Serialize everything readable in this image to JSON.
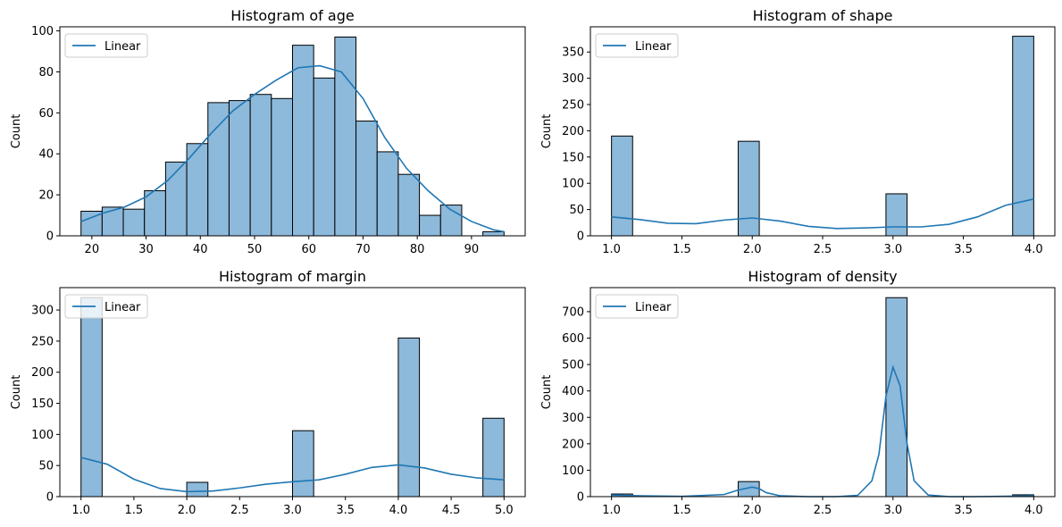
{
  "colors": {
    "bar_fill": "#8db9da",
    "bar_edge": "#000000",
    "line": "#1f77b4",
    "axes": "#000000"
  },
  "chart_data": [
    {
      "type": "bar",
      "variable": "age",
      "title": "Histogram of age",
      "ylabel": "Count",
      "legend": {
        "label": "Linear",
        "placement": "top-left"
      },
      "xlim": [
        14.1,
        99.9
      ],
      "ylim": [
        0,
        102
      ],
      "xticks": [
        20,
        30,
        40,
        50,
        60,
        70,
        80,
        90
      ],
      "xtick_labels": [
        "20",
        "30",
        "40",
        "50",
        "60",
        "70",
        "80",
        "90"
      ],
      "yticks": [
        0,
        20,
        40,
        60,
        80,
        100
      ],
      "ytick_labels": [
        "0",
        "20",
        "40",
        "60",
        "80",
        "100"
      ],
      "bin_edges": [
        18,
        21.9,
        25.8,
        29.7,
        33.6,
        37.5,
        41.4,
        45.3,
        49.2,
        53.1,
        57,
        60.9,
        64.8,
        68.7,
        72.6,
        76.5,
        80.4,
        84.3,
        88.2,
        92.1,
        96
      ],
      "counts": [
        12,
        14,
        13,
        22,
        36,
        45,
        65,
        66,
        69,
        67,
        93,
        77,
        97,
        56,
        41,
        30,
        10,
        15,
        0,
        2
      ],
      "kde": {
        "x": [
          18,
          22,
          26,
          30,
          34,
          38,
          42,
          46,
          50,
          54,
          58,
          62,
          66,
          70,
          74,
          78,
          82,
          86,
          90,
          94,
          96
        ],
        "y": [
          7,
          11,
          14,
          19,
          27,
          38,
          50,
          61,
          69,
          76,
          82,
          83,
          80,
          67,
          48,
          33,
          22,
          13,
          7,
          3,
          2
        ]
      }
    },
    {
      "type": "bar",
      "variable": "shape",
      "title": "Histogram of shape",
      "ylabel": "Count",
      "legend": {
        "label": "Linear",
        "placement": "top-left"
      },
      "xlim": [
        0.85,
        4.15
      ],
      "ylim": [
        0,
        398
      ],
      "xticks": [
        1.0,
        1.5,
        2.0,
        2.5,
        3.0,
        3.5,
        4.0
      ],
      "xtick_labels": [
        "1.0",
        "1.5",
        "2.0",
        "2.5",
        "3.0",
        "3.5",
        "4.0"
      ],
      "yticks": [
        0,
        50,
        100,
        150,
        200,
        250,
        300,
        350
      ],
      "ytick_labels": [
        "0",
        "50",
        "100",
        "150",
        "200",
        "250",
        "300",
        "350"
      ],
      "bin_edges": [
        1.0,
        1.15,
        1.3,
        1.45,
        1.6,
        1.75,
        1.9,
        2.05,
        2.2,
        2.35,
        2.5,
        2.65,
        2.8,
        2.95,
        3.1,
        3.25,
        3.4,
        3.55,
        3.7,
        3.85,
        4.0
      ],
      "counts": [
        190,
        0,
        0,
        0,
        0,
        0,
        180,
        0,
        0,
        0,
        0,
        0,
        0,
        80,
        0,
        0,
        0,
        0,
        0,
        380
      ],
      "kde": {
        "x": [
          1.0,
          1.2,
          1.4,
          1.6,
          1.8,
          2.0,
          2.2,
          2.4,
          2.6,
          2.8,
          3.0,
          3.2,
          3.4,
          3.6,
          3.8,
          4.0
        ],
        "y": [
          36,
          31,
          24,
          23,
          30,
          34,
          28,
          18,
          14,
          15,
          17,
          17,
          22,
          36,
          58,
          70
        ]
      }
    },
    {
      "type": "bar",
      "variable": "margin",
      "title": "Histogram of margin",
      "ylabel": "Count",
      "legend": {
        "label": "Linear",
        "placement": "top-left"
      },
      "xlim": [
        0.8,
        5.2
      ],
      "ylim": [
        0,
        336
      ],
      "xticks": [
        1.0,
        1.5,
        2.0,
        2.5,
        3.0,
        3.5,
        4.0,
        4.5,
        5.0
      ],
      "xtick_labels": [
        "1.0",
        "1.5",
        "2.0",
        "2.5",
        "3.0",
        "3.5",
        "4.0",
        "4.5",
        "5.0"
      ],
      "yticks": [
        0,
        50,
        100,
        150,
        200,
        250,
        300
      ],
      "ytick_labels": [
        "0",
        "50",
        "100",
        "150",
        "200",
        "250",
        "300"
      ],
      "bin_edges": [
        1.0,
        1.2,
        1.4,
        1.6,
        1.8,
        2.0,
        2.2,
        2.4,
        2.6,
        2.8,
        3.0,
        3.2,
        3.4,
        3.6,
        3.8,
        4.0,
        4.2,
        4.4,
        4.6,
        4.8,
        5.0
      ],
      "counts": [
        320,
        0,
        0,
        0,
        0,
        23,
        0,
        0,
        0,
        0,
        106,
        0,
        0,
        0,
        0,
        255,
        0,
        0,
        0,
        126
      ],
      "kde": {
        "x": [
          1.0,
          1.25,
          1.5,
          1.75,
          2.0,
          2.25,
          2.5,
          2.75,
          3.0,
          3.25,
          3.5,
          3.75,
          4.0,
          4.25,
          4.5,
          4.75,
          5.0
        ],
        "y": [
          63,
          52,
          28,
          13,
          8,
          9,
          14,
          20,
          24,
          27,
          36,
          47,
          51,
          46,
          36,
          30,
          27
        ]
      }
    },
    {
      "type": "bar",
      "variable": "density",
      "title": "Histogram of density",
      "ylabel": "Count",
      "legend": {
        "label": "Linear",
        "placement": "top-left"
      },
      "xlim": [
        0.85,
        4.15
      ],
      "ylim": [
        0,
        791
      ],
      "xticks": [
        1.0,
        1.5,
        2.0,
        2.5,
        3.0,
        3.5,
        4.0
      ],
      "xtick_labels": [
        "1.0",
        "1.5",
        "2.0",
        "2.5",
        "3.0",
        "3.5",
        "4.0"
      ],
      "yticks": [
        0,
        100,
        200,
        300,
        400,
        500,
        600,
        700
      ],
      "ytick_labels": [
        "0",
        "100",
        "200",
        "300",
        "400",
        "500",
        "600",
        "700"
      ],
      "bin_edges": [
        1.0,
        1.15,
        1.3,
        1.45,
        1.6,
        1.75,
        1.9,
        2.05,
        2.2,
        2.35,
        2.5,
        2.65,
        2.8,
        2.95,
        3.1,
        3.25,
        3.4,
        3.55,
        3.7,
        3.85,
        4.0
      ],
      "counts": [
        10,
        0,
        0,
        0,
        0,
        0,
        57,
        0,
        0,
        0,
        0,
        0,
        0,
        753,
        0,
        0,
        0,
        0,
        0,
        7
      ],
      "kde": {
        "x": [
          1.0,
          1.2,
          1.5,
          1.8,
          1.9,
          2.0,
          2.05,
          2.1,
          2.2,
          2.4,
          2.6,
          2.75,
          2.85,
          2.9,
          2.95,
          3.0,
          3.05,
          3.1,
          3.15,
          3.25,
          3.4,
          3.6,
          4.0
        ],
        "y": [
          6,
          3,
          1,
          8,
          25,
          36,
          30,
          15,
          3,
          0,
          0,
          5,
          60,
          160,
          380,
          490,
          420,
          200,
          60,
          6,
          0,
          0,
          3
        ]
      }
    }
  ]
}
